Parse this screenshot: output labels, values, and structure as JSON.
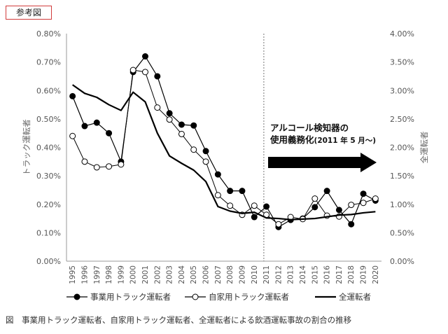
{
  "ref_label": "参考図",
  "caption": "図　事業用トラック運転者、自家用トラック運転者、全運転者による飲酒運転事故の割合の推移",
  "chart_data": {
    "type": "line",
    "x": [
      "1995",
      "1996",
      "1997",
      "1998",
      "1999",
      "2000",
      "2001",
      "2002",
      "2003",
      "2004",
      "2005",
      "2006",
      "2007",
      "2008",
      "2009",
      "2010",
      "2011",
      "2012",
      "2013",
      "2014",
      "2015",
      "2016",
      "2017",
      "2018",
      "2019",
      "2020"
    ],
    "ylabel": "トラック運転者",
    "y2label": "全運転者",
    "ylim": [
      0,
      0.8
    ],
    "y2lim": [
      0,
      4.0
    ],
    "yticks": [
      "0.00%",
      "0.10%",
      "0.20%",
      "0.30%",
      "0.40%",
      "0.50%",
      "0.60%",
      "0.70%",
      "0.80%"
    ],
    "y2ticks": [
      "0.00%",
      "0.50%",
      "1.00%",
      "1.50%",
      "2.00%",
      "2.50%",
      "3.00%",
      "3.50%",
      "4.00%"
    ],
    "series": [
      {
        "name": "事業用トラック運転者",
        "axis": "left",
        "marker": "filled-circle",
        "values": [
          0.58,
          0.475,
          0.487,
          0.45,
          0.35,
          0.665,
          0.72,
          0.65,
          0.52,
          0.48,
          0.477,
          0.387,
          0.305,
          0.247,
          0.247,
          0.155,
          0.192,
          0.12,
          0.145,
          0.15,
          0.19,
          0.247,
          0.18,
          0.13,
          0.237,
          0.213
        ]
      },
      {
        "name": "自家用トラック運転者",
        "axis": "left",
        "marker": "open-circle",
        "values": [
          0.44,
          0.35,
          0.33,
          0.333,
          0.34,
          0.672,
          0.665,
          0.54,
          0.498,
          0.447,
          0.392,
          0.35,
          0.232,
          0.195,
          0.163,
          0.195,
          0.163,
          0.13,
          0.155,
          0.148,
          0.22,
          0.16,
          0.157,
          0.198,
          0.205,
          0.22
        ]
      },
      {
        "name": "全運転者",
        "axis": "right",
        "marker": "none",
        "values": [
          3.1,
          2.95,
          2.88,
          2.75,
          2.65,
          2.97,
          2.8,
          2.25,
          1.85,
          1.72,
          1.6,
          1.4,
          0.96,
          0.88,
          0.84,
          0.86,
          0.76,
          0.75,
          0.73,
          0.74,
          0.75,
          0.78,
          0.81,
          0.82,
          0.85,
          0.87
        ]
      }
    ],
    "annotation": {
      "line1": "アルコール検知器の",
      "line2_main": "使用義務化",
      "line2_small": "(2011 年 5 月～)",
      "at_year": "2011"
    },
    "legend_position": "bottom"
  }
}
